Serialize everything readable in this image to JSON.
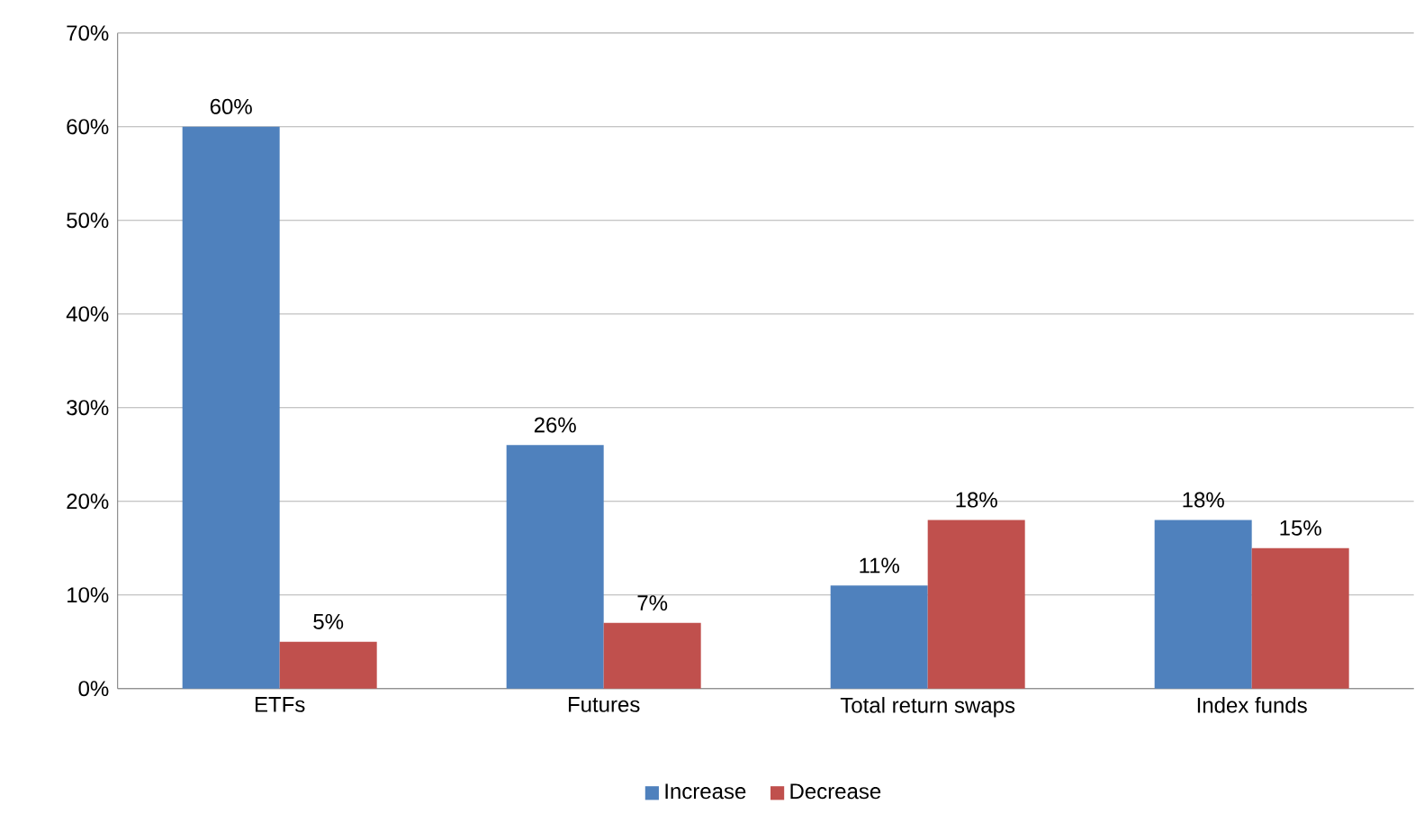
{
  "chart_data": {
    "type": "bar",
    "categories": [
      "ETFs",
      "Futures",
      "Total return swaps",
      "Index funds"
    ],
    "series": [
      {
        "name": "Increase",
        "color": "#4f81bd",
        "values": [
          60,
          26,
          11,
          18
        ],
        "value_labels": [
          "60%",
          "26%",
          "11%",
          "18%"
        ]
      },
      {
        "name": "Decrease",
        "color": "#c0504d",
        "values": [
          5,
          7,
          18,
          15
        ],
        "value_labels": [
          "5%",
          "7%",
          "18%",
          "15%"
        ]
      }
    ],
    "ylim": [
      0,
      70
    ],
    "yticks": [
      {
        "value": 0,
        "label": "0%"
      },
      {
        "value": 10,
        "label": "10%"
      },
      {
        "value": 20,
        "label": "20%"
      },
      {
        "value": 30,
        "label": "30%"
      },
      {
        "value": 40,
        "label": "40%"
      },
      {
        "value": 50,
        "label": "50%"
      },
      {
        "value": 60,
        "label": "60%"
      },
      {
        "value": 70,
        "label": "70%"
      }
    ],
    "grid": "y",
    "legend": "bottom"
  }
}
